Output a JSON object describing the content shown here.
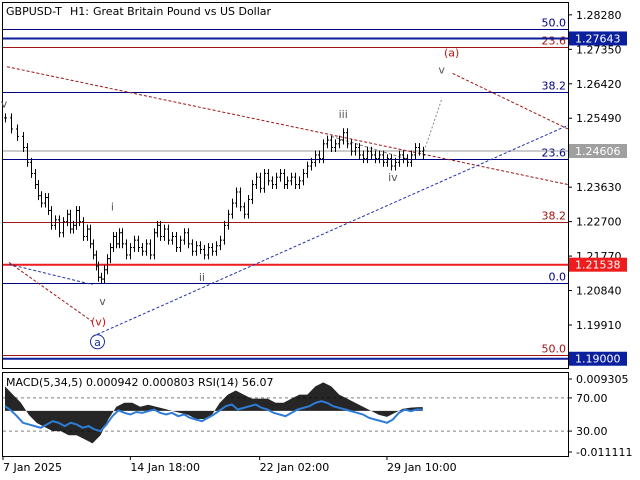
{
  "header": {
    "symbol": "GBPUSD-T",
    "timeframe": "H1:",
    "description": "Great Britain Pound vs US Dollar"
  },
  "colors": {
    "frame": "#000000",
    "grid": "#c8c8c8",
    "blue_level": "#000080",
    "red_level": "#a01515",
    "price_line": "#9a9a9a",
    "support_tag": "#ee1c1c",
    "resist_tag": "#0a1f9e",
    "current_tag": "#a0a0a0",
    "macd_line": "#2e7cd6",
    "macd_fill": "#000000",
    "rsi_dash": "#808080"
  },
  "chart_data": {
    "type": "line",
    "price_axis_ticks": [
      "1.28280",
      "1.27350",
      "1.26420",
      "1.25490",
      "1.23630",
      "1.22700",
      "1.21770",
      "1.20840",
      "1.19910"
    ],
    "ylim": [
      1.1875,
      1.286
    ],
    "price_tags": {
      "resistance": "1.27643",
      "current": "1.24606",
      "support": "1.21538",
      "target": "1.19000"
    },
    "fib_levels": [
      {
        "label": "50.0",
        "price": 1.279,
        "color": "blue"
      },
      {
        "label": "23.6",
        "price": 1.2742,
        "color": "red"
      },
      {
        "label": "38.2",
        "price": 1.262,
        "color": "blue"
      },
      {
        "label": "23.6",
        "price": 1.244,
        "color": "blue"
      },
      {
        "label": "38.2",
        "price": 1.227,
        "color": "red"
      },
      {
        "label": "0.0",
        "price": 1.2105,
        "color": "blue"
      },
      {
        "label": "50.0",
        "price": 1.191,
        "color": "red"
      }
    ],
    "wave_labels": [
      {
        "text": "v",
        "t": 1,
        "p": 1.2578,
        "color": "gray"
      },
      {
        "text": "i",
        "t": 110,
        "p": 1.23,
        "color": "gray"
      },
      {
        "text": "ii",
        "t": 200,
        "p": 1.211,
        "color": "gray"
      },
      {
        "text": "iii",
        "t": 342,
        "p": 1.255,
        "color": "gray"
      },
      {
        "text": "iv",
        "t": 392,
        "p": 1.238,
        "color": "gray"
      },
      {
        "text": "v",
        "t": 441,
        "p": 1.267,
        "color": "gray"
      },
      {
        "text": "v",
        "t": 100,
        "p": 1.2045,
        "color": "gray"
      },
      {
        "text": "(v)",
        "t": 96,
        "p": 1.199,
        "color": "red"
      },
      {
        "text": "(a)",
        "t": 451,
        "p": 1.2715,
        "color": "red"
      },
      {
        "text": "a",
        "t": 95,
        "p": 1.1935,
        "color": "navy"
      }
    ],
    "price_series": [
      [
        2,
        1.255
      ],
      [
        8,
        1.252
      ],
      [
        14,
        1.25
      ],
      [
        20,
        1.247
      ],
      [
        24,
        1.243
      ],
      [
        28,
        1.24
      ],
      [
        32,
        1.237
      ],
      [
        35,
        1.234
      ],
      [
        38,
        1.232
      ],
      [
        42,
        1.2335
      ],
      [
        45,
        1.23
      ],
      [
        48,
        1.226
      ],
      [
        52,
        1.2275
      ],
      [
        56,
        1.224
      ],
      [
        60,
        1.227
      ],
      [
        64,
        1.229
      ],
      [
        67,
        1.225
      ],
      [
        70,
        1.226
      ],
      [
        73,
        1.23
      ],
      [
        76,
        1.227
      ],
      [
        80,
        1.223
      ],
      [
        84,
        1.225
      ],
      [
        87,
        1.221
      ],
      [
        90,
        1.218
      ],
      [
        93,
        1.215
      ],
      [
        96,
        1.212
      ],
      [
        99,
        1.2115
      ],
      [
        102,
        1.214
      ],
      [
        105,
        1.217
      ],
      [
        108,
        1.22
      ],
      [
        111,
        1.223
      ],
      [
        114,
        1.221
      ],
      [
        117,
        1.224
      ],
      [
        120,
        1.221
      ],
      [
        124,
        1.218
      ],
      [
        128,
        1.22
      ],
      [
        132,
        1.222
      ],
      [
        136,
        1.22
      ],
      [
        140,
        1.219
      ],
      [
        144,
        1.221
      ],
      [
        148,
        1.218
      ],
      [
        152,
        1.224
      ],
      [
        155,
        1.226
      ],
      [
        158,
        1.223
      ],
      [
        162,
        1.225
      ],
      [
        166,
        1.222
      ],
      [
        170,
        1.223
      ],
      [
        174,
        1.22
      ],
      [
        178,
        1.222
      ],
      [
        182,
        1.224
      ],
      [
        186,
        1.221
      ],
      [
        190,
        1.219
      ],
      [
        194,
        1.2205
      ],
      [
        198,
        1.2195
      ],
      [
        202,
        1.218
      ],
      [
        206,
        1.22
      ],
      [
        210,
        1.219
      ],
      [
        214,
        1.2205
      ],
      [
        218,
        1.222
      ],
      [
        222,
        1.226
      ],
      [
        226,
        1.229
      ],
      [
        230,
        1.232
      ],
      [
        234,
        1.235
      ],
      [
        238,
        1.231
      ],
      [
        242,
        1.229
      ],
      [
        246,
        1.233
      ],
      [
        250,
        1.237
      ],
      [
        254,
        1.239
      ],
      [
        258,
        1.236
      ],
      [
        262,
        1.24
      ],
      [
        266,
        1.238
      ],
      [
        270,
        1.237
      ],
      [
        274,
        1.239
      ],
      [
        278,
        1.24
      ],
      [
        282,
        1.237
      ],
      [
        286,
        1.238
      ],
      [
        290,
        1.239
      ],
      [
        294,
        1.237
      ],
      [
        298,
        1.238
      ],
      [
        302,
        1.24
      ],
      [
        306,
        1.242
      ],
      [
        310,
        1.243
      ],
      [
        314,
        1.245
      ],
      [
        318,
        1.244
      ],
      [
        322,
        1.248
      ],
      [
        326,
        1.249
      ],
      [
        330,
        1.247
      ],
      [
        334,
        1.248
      ],
      [
        338,
        1.249
      ],
      [
        342,
        1.251
      ],
      [
        346,
        1.248
      ],
      [
        350,
        1.246
      ],
      [
        354,
        1.247
      ],
      [
        358,
        1.245
      ],
      [
        362,
        1.244
      ],
      [
        366,
        1.246
      ],
      [
        370,
        1.245
      ],
      [
        374,
        1.244
      ],
      [
        378,
        1.245
      ],
      [
        382,
        1.243
      ],
      [
        386,
        1.244
      ],
      [
        390,
        1.242
      ],
      [
        394,
        1.243
      ],
      [
        398,
        1.245
      ],
      [
        402,
        1.244
      ],
      [
        406,
        1.243
      ],
      [
        410,
        1.245
      ],
      [
        414,
        1.247
      ],
      [
        418,
        1.246
      ],
      [
        422,
        1.245
      ]
    ],
    "projection": [
      [
        422,
        1.245
      ],
      [
        441,
        1.26
      ]
    ],
    "trendlines": [
      {
        "style": "dash",
        "color": "red",
        "from": [
          4,
          1.2688
        ],
        "to": [
          568,
          1.237
        ]
      },
      {
        "style": "dash",
        "color": "red",
        "from": [
          452,
          1.267
        ],
        "to": [
          568,
          1.252
        ]
      },
      {
        "style": "dash",
        "color": "navy",
        "from": [
          90,
          1.196
        ],
        "to": [
          568,
          1.253
        ]
      },
      {
        "style": "dash",
        "color": "navy",
        "from": [
          6,
          1.2155
        ],
        "to": [
          90,
          1.21
        ]
      },
      {
        "style": "dash",
        "color": "red",
        "from": [
          6,
          1.216
        ],
        "to": [
          90,
          1.2
        ]
      },
      {
        "style": "dash",
        "color": "gray",
        "from": [
          330,
          1.25
        ],
        "to": [
          405,
          1.244
        ]
      }
    ],
    "indicator": {
      "label": "MACD(5,34,5) 0.000942 0.000803 RSI(14) 56.07",
      "axis_ticks": [
        "0.009305",
        "70.00",
        "30.00",
        "-0.011111"
      ],
      "rsi_levels": [
        70,
        30
      ],
      "rsi_range": [
        0,
        100
      ],
      "rsi_values": [
        [
          2,
          60
        ],
        [
          8,
          55
        ],
        [
          14,
          48
        ],
        [
          20,
          40
        ],
        [
          26,
          38
        ],
        [
          32,
          36
        ],
        [
          38,
          34
        ],
        [
          44,
          38
        ],
        [
          50,
          42
        ],
        [
          56,
          40
        ],
        [
          62,
          36
        ],
        [
          68,
          40
        ],
        [
          74,
          38
        ],
        [
          80,
          34
        ],
        [
          86,
          36
        ],
        [
          92,
          32
        ],
        [
          98,
          30
        ],
        [
          104,
          38
        ],
        [
          110,
          48
        ],
        [
          116,
          55
        ],
        [
          122,
          52
        ],
        [
          128,
          50
        ],
        [
          134,
          53
        ],
        [
          140,
          52
        ],
        [
          146,
          54
        ],
        [
          152,
          56
        ],
        [
          158,
          52
        ],
        [
          164,
          50
        ],
        [
          170,
          52
        ],
        [
          176,
          48
        ],
        [
          182,
          50
        ],
        [
          188,
          46
        ],
        [
          194,
          44
        ],
        [
          200,
          42
        ],
        [
          206,
          46
        ],
        [
          212,
          50
        ],
        [
          218,
          55
        ],
        [
          224,
          60
        ],
        [
          230,
          62
        ],
        [
          236,
          56
        ],
        [
          242,
          58
        ],
        [
          248,
          60
        ],
        [
          254,
          62
        ],
        [
          260,
          58
        ],
        [
          266,
          56
        ],
        [
          272,
          52
        ],
        [
          278,
          50
        ],
        [
          284,
          48
        ],
        [
          290,
          52
        ],
        [
          296,
          56
        ],
        [
          302,
          58
        ],
        [
          308,
          60
        ],
        [
          314,
          64
        ],
        [
          320,
          66
        ],
        [
          326,
          64
        ],
        [
          332,
          60
        ],
        [
          338,
          58
        ],
        [
          344,
          56
        ],
        [
          350,
          54
        ],
        [
          356,
          52
        ],
        [
          362,
          50
        ],
        [
          368,
          46
        ],
        [
          374,
          44
        ],
        [
          380,
          42
        ],
        [
          386,
          40
        ],
        [
          392,
          44
        ],
        [
          398,
          52
        ],
        [
          404,
          56
        ],
        [
          410,
          54
        ],
        [
          416,
          56
        ],
        [
          422,
          56
        ]
      ],
      "macd_values": [
        [
          2,
          0.006
        ],
        [
          10,
          0.004
        ],
        [
          18,
          0.002
        ],
        [
          26,
          -0.001
        ],
        [
          34,
          -0.003
        ],
        [
          42,
          -0.004
        ],
        [
          50,
          -0.005
        ],
        [
          58,
          -0.005
        ],
        [
          66,
          -0.006
        ],
        [
          74,
          -0.006
        ],
        [
          82,
          -0.007
        ],
        [
          90,
          -0.008
        ],
        [
          98,
          -0.006
        ],
        [
          106,
          -0.002
        ],
        [
          114,
          0.001
        ],
        [
          122,
          0.002
        ],
        [
          130,
          0.002
        ],
        [
          138,
          0.001
        ],
        [
          146,
          0.0015
        ],
        [
          154,
          0.001
        ],
        [
          162,
          0.0005
        ],
        [
          170,
          0.0
        ],
        [
          178,
          -0.0005
        ],
        [
          186,
          -0.001
        ],
        [
          194,
          -0.002
        ],
        [
          202,
          -0.002
        ],
        [
          210,
          -0.001
        ],
        [
          218,
          0.002
        ],
        [
          226,
          0.004
        ],
        [
          234,
          0.005
        ],
        [
          242,
          0.004
        ],
        [
          250,
          0.003
        ],
        [
          258,
          0.003
        ],
        [
          266,
          0.003
        ],
        [
          274,
          0.002
        ],
        [
          282,
          0.002
        ],
        [
          290,
          0.003
        ],
        [
          298,
          0.004
        ],
        [
          306,
          0.004
        ],
        [
          314,
          0.006
        ],
        [
          322,
          0.007
        ],
        [
          330,
          0.006
        ],
        [
          338,
          0.004
        ],
        [
          346,
          0.003
        ],
        [
          354,
          0.002
        ],
        [
          362,
          0.001
        ],
        [
          370,
          0.0
        ],
        [
          378,
          -0.001
        ],
        [
          386,
          -0.0015
        ],
        [
          394,
          -0.0005
        ],
        [
          402,
          0.0005
        ],
        [
          410,
          0.0008
        ],
        [
          418,
          0.0009
        ],
        [
          422,
          0.0009
        ]
      ],
      "macd_range": [
        -0.011111,
        0.009305
      ]
    },
    "x_labels": [
      {
        "text": "7 Jan 2025",
        "t": 0
      },
      {
        "text": "14 Jan 18:00",
        "t": 128
      },
      {
        "text": "22 Jan 02:00",
        "t": 258
      },
      {
        "text": "29 Jan 10:00",
        "t": 386
      }
    ],
    "xlim": [
      0,
      568
    ]
  }
}
